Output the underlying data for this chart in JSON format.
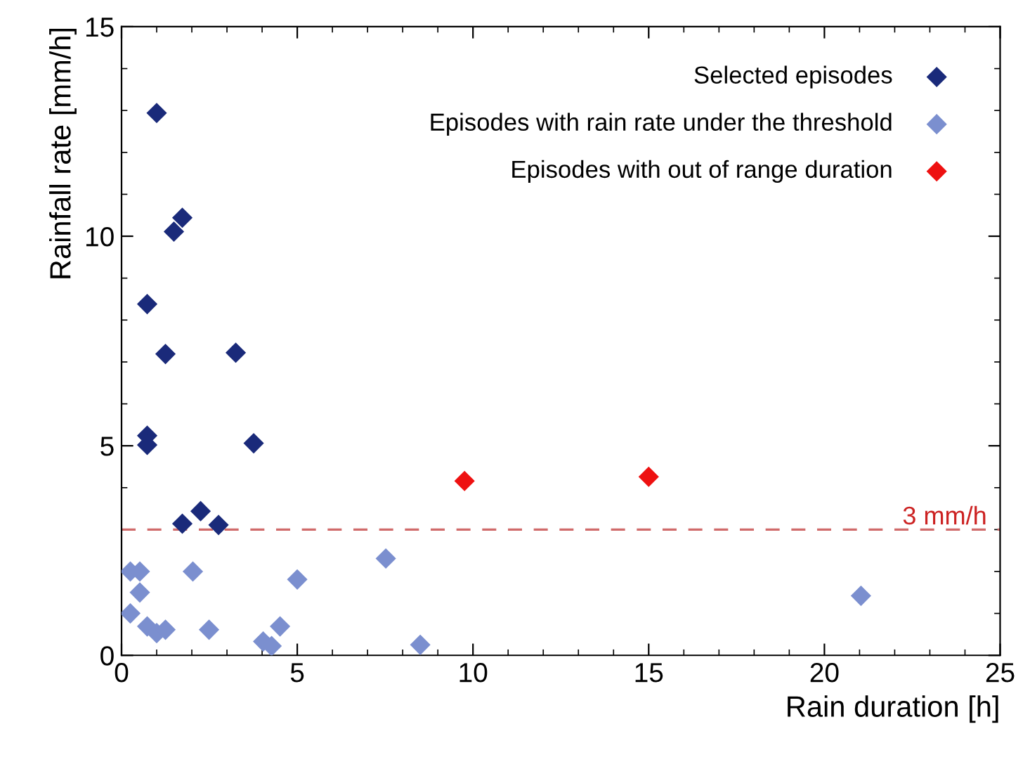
{
  "chart_data": {
    "type": "scatter",
    "xlabel": "Rain duration [h]",
    "ylabel": "Rainfall rate [mm/h]",
    "xlim": [
      0,
      25
    ],
    "ylim": [
      0,
      15
    ],
    "xticks": [
      0,
      5,
      10,
      15,
      20,
      25
    ],
    "yticks": [
      0,
      5,
      10,
      15
    ],
    "marker": "diamond",
    "grid": false,
    "legend": "top right",
    "series": [
      {
        "name": "Selected episodes",
        "color": "#1a2a7a",
        "x": [
          1.0,
          1.49,
          1.73,
          0.73,
          1.25,
          3.25,
          0.73,
          0.73,
          3.76,
          1.73,
          2.25,
          2.76
        ],
        "values": [
          12.94,
          10.11,
          10.44,
          8.38,
          7.19,
          7.22,
          5.24,
          5.02,
          5.06,
          3.14,
          3.44,
          3.11
        ]
      },
      {
        "name": "Episodes with rain rate under the threshold",
        "color": "#7b8fcf",
        "x": [
          0.25,
          0.52,
          0.52,
          0.25,
          0.73,
          1.0,
          1.25,
          2.03,
          2.49,
          4.03,
          4.27,
          4.51,
          5.0,
          7.52,
          8.5,
          21.04
        ],
        "values": [
          2.0,
          2.0,
          1.5,
          1.0,
          0.69,
          0.53,
          0.61,
          2.0,
          0.61,
          0.33,
          0.22,
          0.69,
          1.81,
          2.31,
          0.25,
          1.42
        ]
      },
      {
        "name": "Episodes with out of range duration",
        "color": "#ee1111",
        "x": [
          9.76,
          15.0
        ],
        "values": [
          4.16,
          4.26
        ]
      }
    ],
    "ref_lines": [
      {
        "axis": "y",
        "value": 3,
        "label": "3 mm/h",
        "color": "#d06a6a",
        "line_style": "dashed"
      }
    ]
  }
}
